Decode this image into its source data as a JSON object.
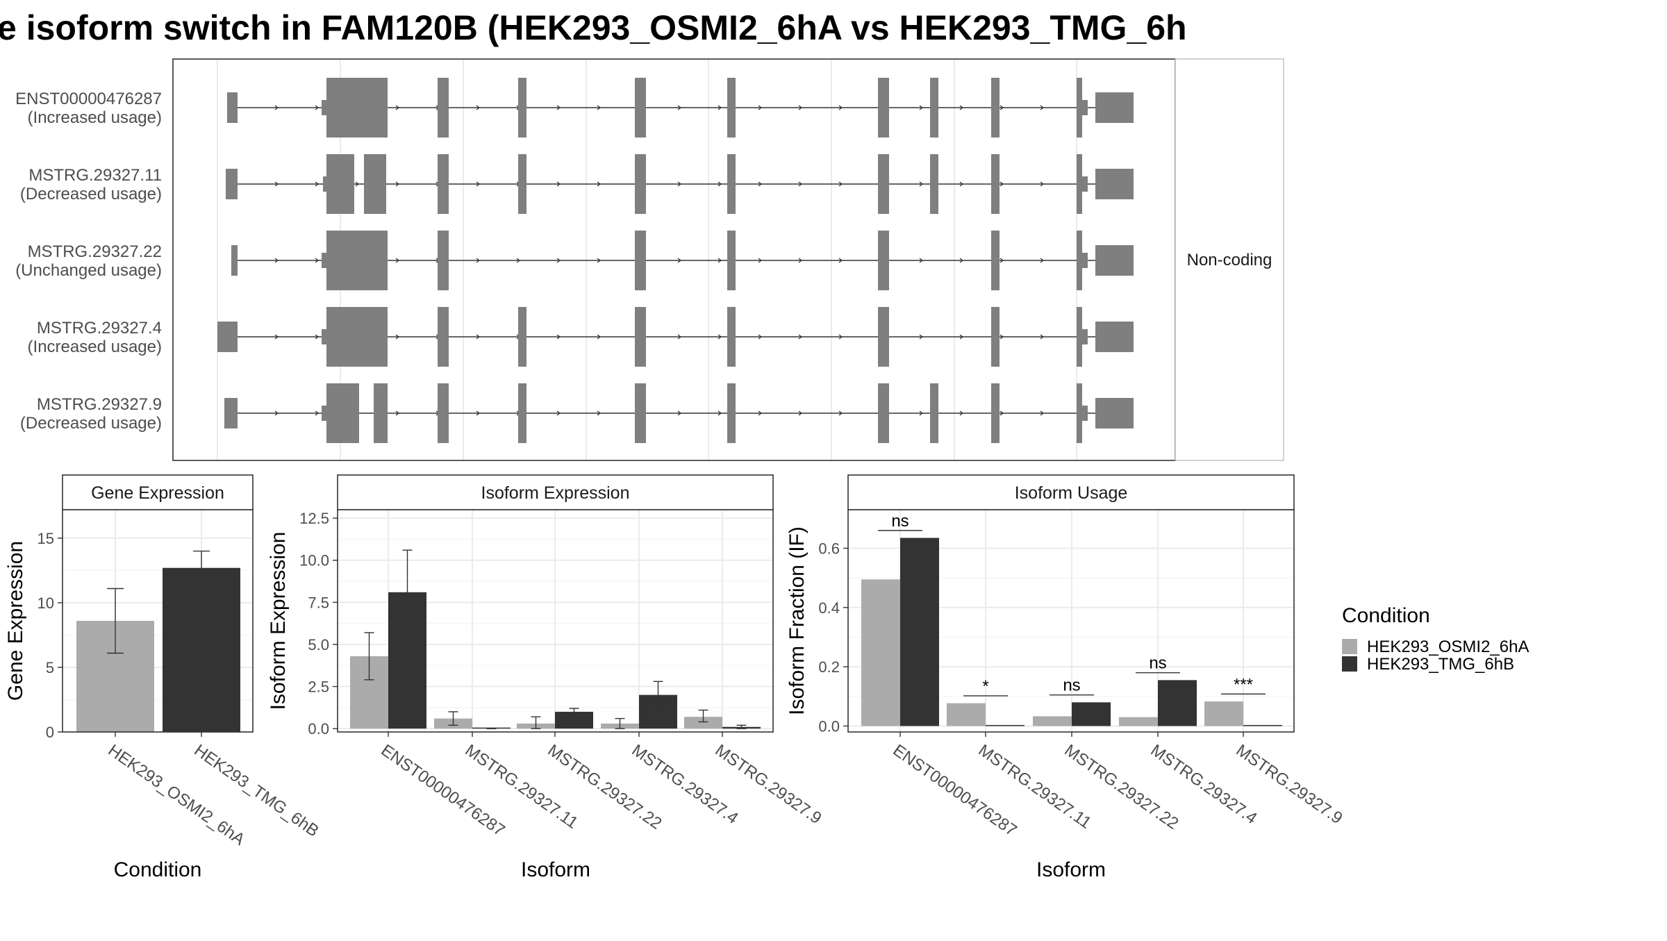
{
  "title": "e isoform switch in FAM120B (HEK293_OSMI2_6hA vs HEK293_TMG_6h",
  "colors": {
    "cond_a": "#ababab",
    "cond_b": "#333333",
    "exon": "#7f7f7f",
    "grid": "#ebebeb",
    "frame": "#333333"
  },
  "transcripts": {
    "strip_label": "Non-coding",
    "rows": [
      {
        "id": "ENST00000476287",
        "usage": "(Increased usage)"
      },
      {
        "id": "MSTRG.29327.11",
        "usage": "(Decreased usage)"
      },
      {
        "id": "MSTRG.29327.22",
        "usage": "(Unchanged usage)"
      },
      {
        "id": "MSTRG.29327.4",
        "usage": "(Increased usage)"
      },
      {
        "id": "MSTRG.29327.9",
        "usage": "(Decreased usage)"
      }
    ]
  },
  "legend": {
    "title": "Condition",
    "items": [
      {
        "label": "HEK293_OSMI2_6hA",
        "color": "#ababab"
      },
      {
        "label": "HEK293_TMG_6hB",
        "color": "#333333"
      }
    ]
  },
  "chart_data": [
    {
      "type": "bar",
      "panel": "Gene Expression",
      "xlabel": "Condition",
      "ylabel": "Gene Expression",
      "ylim": [
        0,
        17.2
      ],
      "yticks": [
        "0",
        "5",
        "10",
        "15"
      ],
      "ytick_values": [
        0,
        5,
        10,
        15
      ],
      "categories": [
        "HEK293_OSMI2_6hA",
        "HEK293_TMG_6hB"
      ],
      "values": [
        8.6,
        12.7
      ],
      "errors": [
        [
          6.1,
          11.1
        ],
        [
          11.4,
          14.0
        ]
      ]
    },
    {
      "type": "bar",
      "panel": "Isoform Expression",
      "xlabel": "Isoform",
      "ylabel": "Isoform Expression",
      "ylim": [
        -0.2,
        13.0
      ],
      "yticks": [
        "0.0",
        "2.5",
        "5.0",
        "7.5",
        "10.0",
        "12.5"
      ],
      "ytick_values": [
        0,
        2.5,
        5,
        7.5,
        10,
        12.5
      ],
      "categories": [
        "ENST00000476287",
        "MSTRG.29327.11",
        "MSTRG.29327.22",
        "MSTRG.29327.4",
        "MSTRG.29327.9"
      ],
      "series": [
        {
          "name": "HEK293_OSMI2_6hA",
          "values": [
            4.3,
            0.6,
            0.3,
            0.3,
            0.7
          ],
          "errors": [
            [
              2.9,
              5.7
            ],
            [
              0.2,
              1.0
            ],
            [
              0.0,
              0.7
            ],
            [
              0.0,
              0.6
            ],
            [
              0.4,
              1.1
            ]
          ]
        },
        {
          "name": "HEK293_TMG_6hB",
          "values": [
            8.1,
            0.0,
            1.0,
            2.0,
            0.1
          ],
          "errors": [
            [
              5.6,
              10.6
            ],
            [
              0.0,
              0.0
            ],
            [
              0.8,
              1.2
            ],
            [
              1.2,
              2.8
            ],
            [
              0.0,
              0.2
            ]
          ]
        }
      ]
    },
    {
      "type": "bar",
      "panel": "Isoform Usage",
      "xlabel": "Isoform",
      "ylabel": "Isoform Fraction (IF)",
      "ylim": [
        -0.02,
        0.73
      ],
      "yticks": [
        "0.0",
        "0.2",
        "0.4",
        "0.6"
      ],
      "ytick_values": [
        0,
        0.2,
        0.4,
        0.6
      ],
      "categories": [
        "ENST00000476287",
        "MSTRG.29327.11",
        "MSTRG.29327.22",
        "MSTRG.29327.4",
        "MSTRG.29327.9"
      ],
      "series": [
        {
          "name": "HEK293_OSMI2_6hA",
          "values": [
            0.495,
            0.077,
            0.033,
            0.03,
            0.083
          ]
        },
        {
          "name": "HEK293_TMG_6hB",
          "values": [
            0.635,
            0.002,
            0.08,
            0.155,
            0.003
          ]
        }
      ],
      "significance": [
        "ns",
        "*",
        "ns",
        "ns",
        "***"
      ]
    }
  ]
}
